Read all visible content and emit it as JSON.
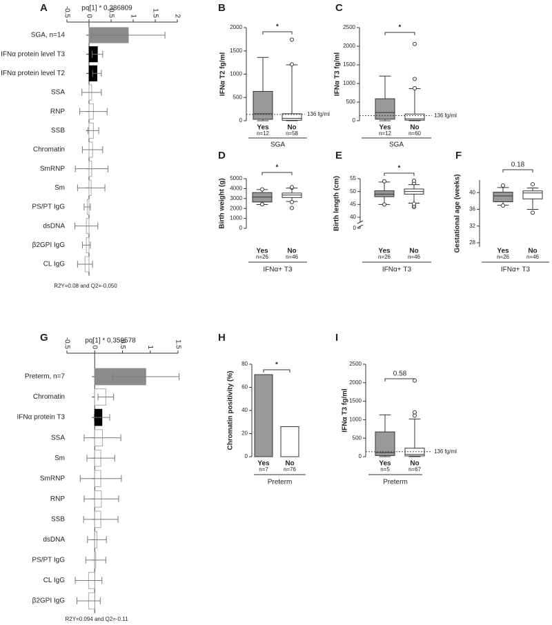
{
  "chart_data": [
    {
      "type": "loading",
      "panel": "A",
      "title": "pq[1] * 0,386809",
      "xlim": [
        -0.5,
        2
      ],
      "xticks": [
        -0.5,
        0,
        0.5,
        1,
        1.5,
        2
      ],
      "categories": [
        "SGA, n=14",
        "IFNα protein level T3",
        "IFNα protein level T2",
        "SSA",
        "RNP",
        "SSB",
        "Chromatin",
        "SmRNP",
        "Sm",
        "PS/PT IgG",
        "dsDNA",
        "β2GPI IgG",
        "CL IgG"
      ],
      "values": [
        0.89,
        0.19,
        0.18,
        0.06,
        0.1,
        0.1,
        0.08,
        0.06,
        0.05,
        -0.04,
        -0.06,
        -0.06,
        -0.09
      ],
      "errors": [
        0.83,
        0.12,
        0.1,
        0.22,
        0.31,
        0.12,
        0.23,
        0.37,
        0.31,
        0.07,
        0.26,
        0.09,
        0.17
      ],
      "colors": [
        "#8c8c8c",
        "#000000",
        "#000000",
        "#ffffff",
        "#ffffff",
        "#ffffff",
        "#ffffff",
        "#ffffff",
        "#ffffff",
        "#ffffff",
        "#ffffff",
        "#ffffff",
        "#ffffff"
      ],
      "footnote": "R2Y=0.08 and Q2=-0.050"
    },
    {
      "type": "box",
      "panel": "B",
      "ylabel": "IFNα T2 fg/ml",
      "categories": [
        "Yes",
        "No"
      ],
      "n_labels": [
        "n=12",
        "n=58"
      ],
      "group": "SGA",
      "significance": "*",
      "reference": {
        "value": 136,
        "label": "136 fg/ml"
      },
      "ylim": [
        0,
        2000
      ],
      "yticks": [
        0,
        500,
        1000,
        1500,
        2000
      ],
      "colors": [
        "#999999",
        "#ffffff"
      ],
      "boxes": [
        {
          "min": 0,
          "q1": 30,
          "median": 150,
          "q3": 630,
          "max": 1360,
          "outliers": []
        },
        {
          "min": 0,
          "q1": 10,
          "median": 50,
          "q3": 150,
          "max": 1200,
          "outliers": [
            1210,
            1740
          ]
        }
      ]
    },
    {
      "type": "box",
      "panel": "C",
      "ylabel": "IFNα T3 fg/ml",
      "categories": [
        "Yes",
        "No"
      ],
      "n_labels": [
        "n=12",
        "n=60"
      ],
      "group": "SGA",
      "significance": "*",
      "reference": {
        "value": 136,
        "label": "136 fg/ml"
      },
      "ylim": [
        0,
        2500
      ],
      "yticks": [
        0,
        500,
        1000,
        1500,
        2000,
        2500
      ],
      "colors": [
        "#999999",
        "#ffffff"
      ],
      "boxes": [
        {
          "min": 0,
          "q1": 40,
          "median": 220,
          "q3": 590,
          "max": 1200,
          "outliers": []
        },
        {
          "min": 0,
          "q1": 15,
          "median": 50,
          "q3": 180,
          "max": 860,
          "outliers": [
            870,
            1120,
            2060
          ]
        }
      ]
    },
    {
      "type": "box",
      "panel": "D",
      "ylabel": "Birth weight (g)",
      "categories": [
        "Yes",
        "No"
      ],
      "n_labels": [
        "n=26",
        "n=46"
      ],
      "group": "IFNα+ T3",
      "significance": "*",
      "ylim": [
        0,
        5000
      ],
      "yticks": [
        0,
        1000,
        2000,
        3000,
        4000,
        5000
      ],
      "colors": [
        "#999999",
        "#ffffff"
      ],
      "boxes": [
        {
          "min": 2400,
          "q1": 2650,
          "median": 3150,
          "q3": 3600,
          "max": 3900,
          "outliers": [
            2420,
            3920
          ]
        },
        {
          "min": 2700,
          "q1": 3100,
          "median": 3350,
          "q3": 3550,
          "max": 4050,
          "outliers": [
            2050,
            2650,
            4100,
            4150
          ]
        }
      ]
    },
    {
      "type": "box",
      "panel": "E",
      "ylabel": "Birth length (cm)",
      "categories": [
        "Yes",
        "No"
      ],
      "n_labels": [
        "n=26",
        "n=46"
      ],
      "group": "IFNα+ T3",
      "significance": "*",
      "ylim": [
        0,
        55
      ],
      "y_break": 40,
      "yticks": [
        0,
        40,
        45,
        50,
        55
      ],
      "colors": [
        "#999999",
        "#ffffff"
      ],
      "boxes": [
        {
          "min": 45,
          "q1": 48,
          "median": 49,
          "q3": 50.3,
          "max": 53.7,
          "outliers": [
            45,
            54
          ]
        },
        {
          "min": 45.5,
          "q1": 49,
          "median": 50,
          "q3": 51,
          "max": 52.7,
          "outliers": [
            44,
            44.5,
            45.3,
            53.3,
            54.2
          ]
        }
      ]
    },
    {
      "type": "box",
      "panel": "F",
      "ylabel": "Gestational age (weeks)",
      "categories": [
        "Yes",
        "No"
      ],
      "n_labels": [
        "n=26",
        "n=46"
      ],
      "group": "IFNα+ T3",
      "significance": "0.18",
      "ylim": [
        27,
        43
      ],
      "yticks": [
        28,
        32,
        36,
        40
      ],
      "colors": [
        "#999999",
        "#ffffff"
      ],
      "boxes": [
        {
          "min": 37,
          "q1": 37.8,
          "median": 39.2,
          "q3": 40.1,
          "max": 41.2,
          "outliers": [
            36.9,
            41.7
          ]
        },
        {
          "min": 36,
          "q1": 38.5,
          "median": 39.9,
          "q3": 40.4,
          "max": 41.1,
          "outliers": [
            35.2,
            42
          ]
        }
      ]
    },
    {
      "type": "loading",
      "panel": "G",
      "title": "pq[1] * 0,359578",
      "xlim": [
        -0.5,
        1.5
      ],
      "xticks": [
        -0.5,
        0,
        0.5,
        1,
        1.5
      ],
      "categories": [
        "Preterm, n=7",
        "Chromatin",
        "IFNα protein T3",
        "SSA",
        "Sm",
        "SmRNP",
        "RNP",
        "SSB",
        "dsDNA",
        "PS/PT IgG",
        "CL IgG",
        "β2GPI IgG"
      ],
      "values": [
        0.92,
        0.2,
        0.13,
        0.14,
        0.11,
        0.11,
        0.12,
        0.11,
        0.04,
        0.02,
        -0.11,
        -0.11
      ],
      "errors": [
        0.6,
        0.14,
        0.14,
        0.33,
        0.25,
        0.37,
        0.31,
        0.31,
        0.17,
        0.18,
        0.24,
        0.21
      ],
      "colors": [
        "#8c8c8c",
        "#ffffff",
        "#000000",
        "#ffffff",
        "#ffffff",
        "#ffffff",
        "#ffffff",
        "#ffffff",
        "#ffffff",
        "#ffffff",
        "#ffffff",
        "#ffffff"
      ],
      "footnote": "R2Y=0.094 and Q2=-0.11"
    },
    {
      "type": "bar",
      "panel": "H",
      "ylabel": "Chromatin positivity (%)",
      "categories": [
        "Yes",
        "No"
      ],
      "n_labels": [
        "n=7",
        "n=76"
      ],
      "group": "Preterm",
      "significance": "*",
      "values": [
        71,
        26
      ],
      "ylim": [
        0,
        80
      ],
      "yticks": [
        0,
        20,
        40,
        60,
        80
      ],
      "colors": [
        "#999999",
        "#ffffff"
      ]
    },
    {
      "type": "box",
      "panel": "I",
      "ylabel": "IFNα T3 fg/ml",
      "categories": [
        "Yes",
        "No"
      ],
      "n_labels": [
        "n=5",
        "n=67"
      ],
      "group": "Preterm",
      "significance": "0.58",
      "reference": {
        "value": 136,
        "label": "136 fg/ml"
      },
      "ylim": [
        0,
        2500
      ],
      "yticks": [
        0,
        500,
        1000,
        1500,
        2000,
        2500
      ],
      "colors": [
        "#999999",
        "#ffffff"
      ],
      "boxes": [
        {
          "min": 0,
          "q1": 30,
          "median": 110,
          "q3": 670,
          "max": 1130,
          "outliers": []
        },
        {
          "min": 0,
          "q1": 20,
          "median": 60,
          "q3": 230,
          "max": 1020,
          "outliers": [
            1110,
            1200,
            2060
          ]
        }
      ]
    }
  ]
}
